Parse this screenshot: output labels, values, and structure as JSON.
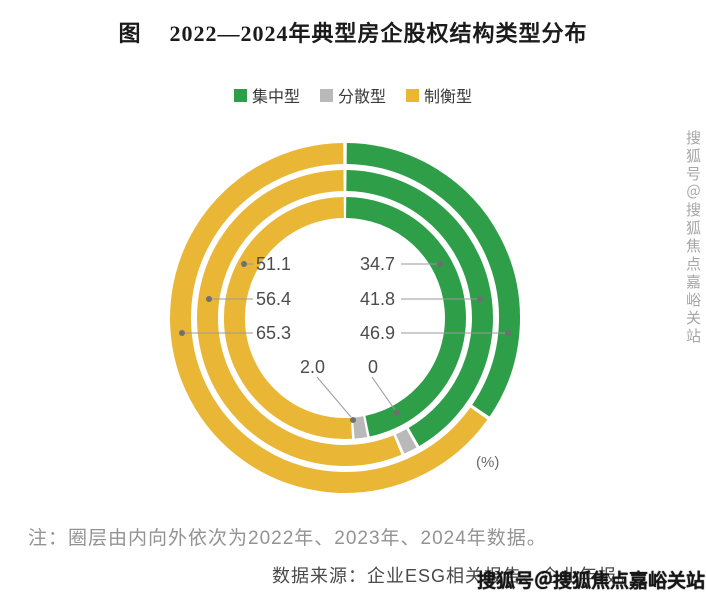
{
  "title": {
    "prefix": "图",
    "text": "2022—2024年典型房企股权结构类型分布"
  },
  "legend": [
    {
      "label": "集中型",
      "color": "#2f9e49"
    },
    {
      "label": "分散型",
      "color": "#b9b9b9"
    },
    {
      "label": "制衡型",
      "color": "#e9b735"
    }
  ],
  "unit_label": "(%)",
  "note": "注：圈层由内向外依次为2022年、2023年、2024年数据。",
  "source": "数据来源：企业ESG相关报告、企业年报。",
  "watermark": "搜狐号＠搜狐焦点嘉峪关站",
  "chart_data": {
    "type": "donut",
    "title": "2022—2024年典型房企股权结构类型分布",
    "unit": "%",
    "legend_position": "top",
    "categories": [
      "集中型",
      "分散型",
      "制衡型"
    ],
    "colors": [
      "#2f9e49",
      "#b9b9b9",
      "#e9b735"
    ],
    "rings_inner_to_outer": [
      "2022年",
      "2023年",
      "2024年"
    ],
    "series": [
      {
        "name": "2022年",
        "values": [
          46.9,
          2.0,
          51.1
        ]
      },
      {
        "name": "2023年",
        "values": [
          41.8,
          1.8,
          56.4
        ]
      },
      {
        "name": "2024年",
        "values": [
          34.7,
          0,
          65.3
        ]
      }
    ],
    "labels": {
      "zhiheng": [
        "51.1",
        "56.4",
        "65.3"
      ],
      "jizhong": [
        "34.7",
        "41.8",
        "46.9"
      ],
      "fensan": [
        "2.0",
        "0"
      ]
    }
  }
}
